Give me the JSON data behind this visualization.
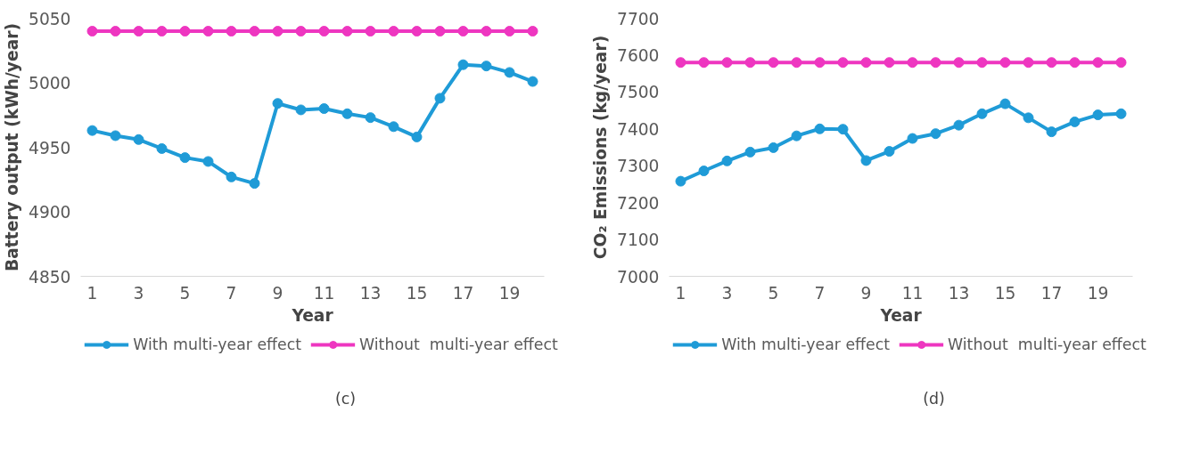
{
  "chart_data": [
    {
      "type": "line",
      "xlabel": "Year",
      "ylabel": "Battery output (kWh/year)",
      "x": [
        1,
        2,
        3,
        4,
        5,
        6,
        7,
        8,
        9,
        10,
        11,
        12,
        13,
        14,
        15,
        16,
        17,
        18,
        19,
        20
      ],
      "series": [
        {
          "name": "With multi-year effect",
          "color": "#1f9bd7",
          "values": [
            4963,
            4959,
            4956,
            4949,
            4942,
            4939,
            4927,
            4922,
            4984,
            4979,
            4980,
            4976,
            4973,
            4966,
            4958,
            4988,
            5014,
            5013,
            5008,
            5001
          ]
        },
        {
          "name": "Without  multi-year effect",
          "color": "#ee36c0",
          "values": [
            5040,
            5040,
            5040,
            5040,
            5040,
            5040,
            5040,
            5040,
            5040,
            5040,
            5040,
            5040,
            5040,
            5040,
            5040,
            5040,
            5040,
            5040,
            5040,
            5040
          ]
        }
      ],
      "xlim": [
        0.5,
        20.5
      ],
      "xticks": [
        1,
        3,
        5,
        7,
        9,
        11,
        13,
        15,
        17,
        19
      ],
      "ylim": [
        4850,
        5050
      ],
      "yticks": [
        4850,
        4900,
        4950,
        5000,
        5050
      ],
      "grid": false,
      "legend": "bottom",
      "marker": "circle",
      "line_style": "solid",
      "annotations": [
        "(c)"
      ]
    },
    {
      "type": "line",
      "xlabel": "Year",
      "ylabel": "CO₂ Emissions (kg/year)",
      "x": [
        1,
        2,
        3,
        4,
        5,
        6,
        7,
        8,
        9,
        10,
        11,
        12,
        13,
        14,
        15,
        16,
        17,
        18,
        19,
        20
      ],
      "series": [
        {
          "name": "With multi-year effect",
          "color": "#1f9bd7",
          "values": [
            7258,
            7286,
            7313,
            7337,
            7349,
            7381,
            7400,
            7399,
            7314,
            7339,
            7374,
            7387,
            7410,
            7441,
            7468,
            7430,
            7392,
            7419,
            7438,
            7441
          ]
        },
        {
          "name": "Without  multi-year effect",
          "color": "#ee36c0",
          "values": [
            7580,
            7580,
            7580,
            7580,
            7580,
            7580,
            7580,
            7580,
            7580,
            7580,
            7580,
            7580,
            7580,
            7580,
            7580,
            7580,
            7580,
            7580,
            7580,
            7580
          ]
        }
      ],
      "xlim": [
        0.5,
        20.5
      ],
      "xticks": [
        1,
        3,
        5,
        7,
        9,
        11,
        13,
        15,
        17,
        19
      ],
      "ylim": [
        7000,
        7700
      ],
      "yticks": [
        7000,
        7100,
        7200,
        7300,
        7400,
        7500,
        7600,
        7700
      ],
      "grid": false,
      "legend": "bottom",
      "marker": "circle",
      "line_style": "solid",
      "annotations": [
        "(d)"
      ]
    }
  ]
}
